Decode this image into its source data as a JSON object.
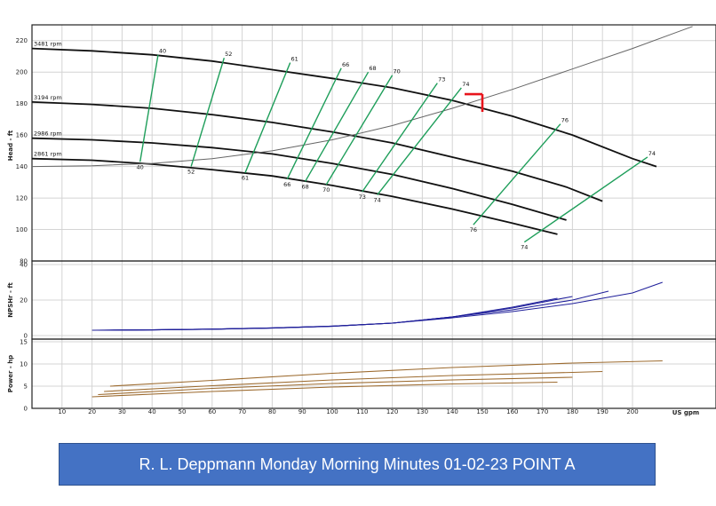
{
  "caption": "R. L. Deppmann Monday Morning Minutes 01-02-23 POINT A",
  "colors": {
    "grid": "#d4d4d4",
    "curve": "#111111",
    "efficiency": "#1e9e5a",
    "system": "#666666",
    "npsh": "#1f1f9a",
    "power": "#9c6a2e",
    "operating_point": "#e8141c",
    "caption_bg": "#4472c4"
  },
  "chart_data": [
    {
      "type": "line",
      "title": "",
      "ylabel": "Head - ft",
      "xlabel": "US gpm",
      "xlim": [
        0,
        215
      ],
      "ylim": [
        80,
        230
      ],
      "x_ticks": [
        10,
        20,
        30,
        40,
        50,
        60,
        70,
        80,
        90,
        100,
        110,
        120,
        130,
        140,
        150,
        160,
        170,
        180,
        190,
        200
      ],
      "y_ticks": [
        80,
        100,
        120,
        140,
        160,
        180,
        200,
        220
      ],
      "grid": true,
      "series": [
        {
          "name": "3481 rpm",
          "x": [
            0,
            20,
            40,
            60,
            80,
            100,
            120,
            140,
            160,
            180,
            200,
            208
          ],
          "y": [
            215,
            213.5,
            211,
            207,
            201.5,
            196,
            190,
            182,
            172,
            160,
            145,
            140
          ]
        },
        {
          "name": "3194 rpm",
          "x": [
            0,
            20,
            40,
            60,
            80,
            100,
            120,
            140,
            160,
            178,
            190
          ],
          "y": [
            181,
            179.5,
            177,
            173,
            168,
            162,
            155,
            146,
            137,
            127,
            118
          ]
        },
        {
          "name": "2986 rpm",
          "x": [
            0,
            20,
            40,
            60,
            80,
            100,
            120,
            140,
            160,
            178
          ],
          "y": [
            158,
            157,
            155,
            152,
            148,
            142,
            135,
            126,
            116,
            106
          ]
        },
        {
          "name": "2861 rpm",
          "x": [
            0,
            20,
            40,
            60,
            80,
            100,
            120,
            140,
            160,
            175
          ],
          "y": [
            145,
            144,
            141.5,
            138,
            134,
            128,
            121,
            113,
            104,
            97
          ]
        },
        {
          "name": "",
          "role": "system curve",
          "x": [
            0,
            20,
            40,
            60,
            80,
            100,
            120,
            140,
            160,
            180,
            200,
            220
          ],
          "y": [
            140,
            140.5,
            142,
            145,
            150,
            157,
            166,
            177,
            189,
            202,
            215,
            229
          ]
        }
      ],
      "efficiency_lines": [
        {
          "top_label": "40",
          "bottom_label": "40",
          "top": [
            42,
            211
          ],
          "bottom": [
            36,
            143
          ]
        },
        {
          "top_label": "52",
          "bottom_label": "52",
          "top": [
            64,
            209
          ],
          "bottom": [
            53,
            140
          ]
        },
        {
          "top_label": "61",
          "bottom_label": "61",
          "top": [
            86,
            206
          ],
          "bottom": [
            71,
            136
          ]
        },
        {
          "top_label": "66",
          "bottom_label": "66",
          "top": [
            103,
            202.5
          ],
          "bottom": [
            85,
            132
          ]
        },
        {
          "top_label": "68",
          "bottom_label": "68",
          "top": [
            112,
            200
          ],
          "bottom": [
            91,
            130.5
          ]
        },
        {
          "top_label": "70",
          "bottom_label": "70",
          "top": [
            120,
            198
          ],
          "bottom": [
            98,
            128.5
          ]
        },
        {
          "top_label": "73",
          "bottom_label": "73",
          "top": [
            135,
            193
          ],
          "bottom": [
            110,
            124
          ]
        },
        {
          "top_label": "74",
          "bottom_label": "74",
          "top": [
            143,
            190
          ],
          "bottom": [
            115,
            122
          ]
        },
        {
          "top_label": "76",
          "bottom_label": "76",
          "top": [
            176,
            167
          ],
          "bottom": [
            147,
            103
          ]
        },
        {
          "top_label": "74",
          "bottom_label": "74",
          "top": [
            205,
            146
          ],
          "bottom": [
            164,
            92
          ]
        }
      ],
      "operating_point": {
        "x": 150,
        "y": 186
      }
    },
    {
      "type": "line",
      "ylabel": "NPSHr - ft",
      "xlim": [
        0,
        215
      ],
      "ylim": [
        0,
        40
      ],
      "y_ticks": [
        0,
        20,
        40
      ],
      "grid": true,
      "series": [
        {
          "name": "",
          "x": [
            20,
            40,
            60,
            80,
            100,
            120,
            140,
            160,
            175
          ],
          "y": [
            3,
            3.2,
            3.6,
            4.2,
            5.2,
            7,
            10.5,
            16,
            21
          ]
        },
        {
          "name": "",
          "x": [
            22,
            40,
            60,
            80,
            100,
            120,
            140,
            160,
            180
          ],
          "y": [
            3,
            3.2,
            3.6,
            4.3,
            5.3,
            7,
            10.5,
            15.5,
            22
          ]
        },
        {
          "name": "",
          "x": [
            24,
            40,
            60,
            80,
            100,
            120,
            140,
            160,
            180,
            192
          ],
          "y": [
            3,
            3.2,
            3.6,
            4.3,
            5.3,
            7,
            10.5,
            14.5,
            20,
            25
          ]
        },
        {
          "name": "",
          "x": [
            26,
            40,
            60,
            80,
            100,
            120,
            140,
            160,
            180,
            200,
            210
          ],
          "y": [
            3,
            3.2,
            3.6,
            4.3,
            5.3,
            7,
            10,
            13.5,
            18,
            24,
            30
          ]
        }
      ]
    },
    {
      "type": "line",
      "ylabel": "Power - hp",
      "xlabel": "US gpm",
      "xlim": [
        0,
        215
      ],
      "ylim": [
        0,
        15
      ],
      "y_ticks": [
        0,
        5,
        10,
        15
      ],
      "grid": true,
      "series": [
        {
          "name": "",
          "x": [
            20,
            60,
            100,
            140,
            175
          ],
          "y": [
            2.6,
            3.8,
            4.8,
            5.5,
            5.9
          ]
        },
        {
          "name": "",
          "x": [
            22,
            60,
            100,
            140,
            180
          ],
          "y": [
            3.1,
            4.5,
            5.6,
            6.4,
            7
          ]
        },
        {
          "name": "",
          "x": [
            24,
            60,
            100,
            140,
            180,
            190
          ],
          "y": [
            3.8,
            5.1,
            6.4,
            7.4,
            8.1,
            8.3
          ]
        },
        {
          "name": "",
          "x": [
            26,
            60,
            100,
            140,
            180,
            210
          ],
          "y": [
            5,
            6.3,
            7.9,
            9.2,
            10.2,
            10.7
          ]
        }
      ]
    }
  ]
}
